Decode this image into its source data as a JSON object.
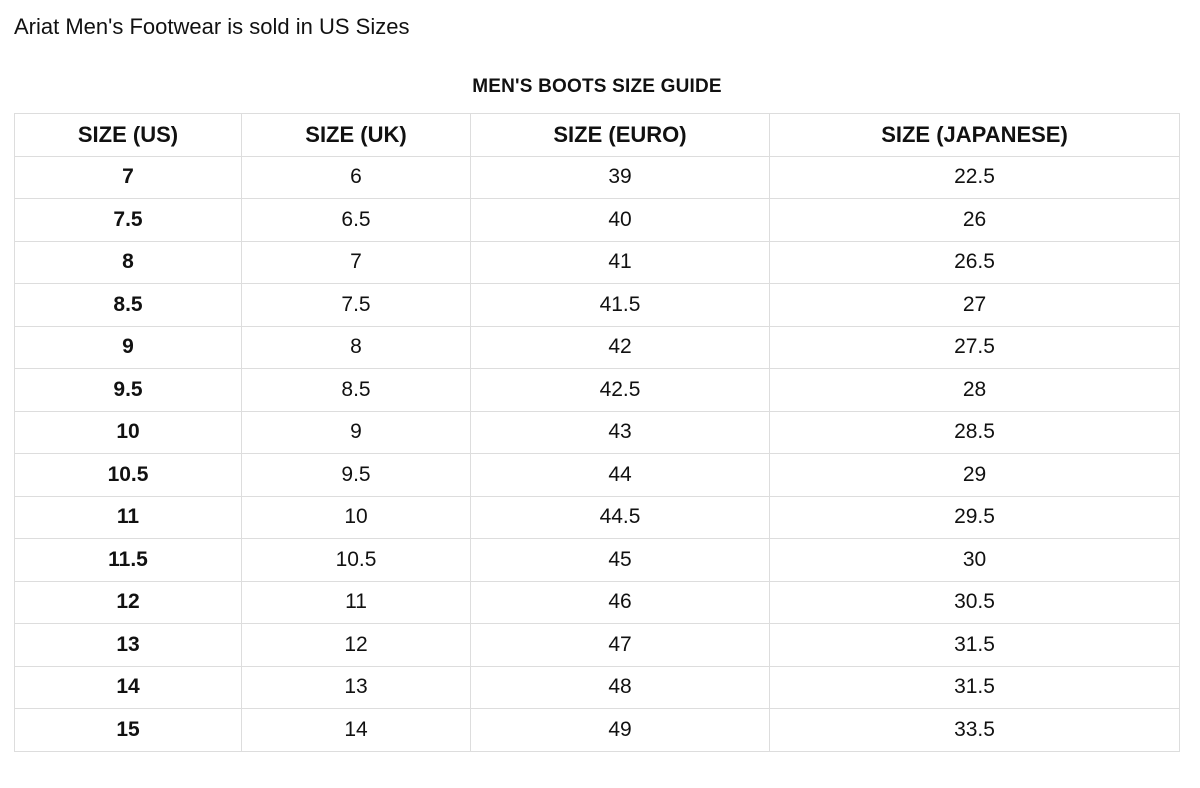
{
  "intro_text": "Ariat Men's Footwear is sold in US Sizes",
  "table": {
    "title": "MEN'S BOOTS SIZE GUIDE",
    "headers": [
      "SIZE (US)",
      "SIZE (UK)",
      "SIZE (EURO)",
      "SIZE (JAPANESE)"
    ],
    "rows": [
      [
        "7",
        "6",
        "39",
        "22.5"
      ],
      [
        "7.5",
        "6.5",
        "40",
        "26"
      ],
      [
        "8",
        "7",
        "41",
        "26.5"
      ],
      [
        "8.5",
        "7.5",
        "41.5",
        "27"
      ],
      [
        "9",
        "8",
        "42",
        "27.5"
      ],
      [
        "9.5",
        "8.5",
        "42.5",
        "28"
      ],
      [
        "10",
        "9",
        "43",
        "28.5"
      ],
      [
        "10.5",
        "9.5",
        "44",
        "29"
      ],
      [
        "11",
        "10",
        "44.5",
        "29.5"
      ],
      [
        "11.5",
        "10.5",
        "45",
        "30"
      ],
      [
        "12",
        "11",
        "46",
        "30.5"
      ],
      [
        "13",
        "12",
        "47",
        "31.5"
      ],
      [
        "14",
        "13",
        "48",
        "31.5"
      ],
      [
        "15",
        "14",
        "49",
        "33.5"
      ]
    ]
  },
  "colors": {
    "text": "#111111",
    "border": "#dddddd",
    "background": "#ffffff"
  }
}
